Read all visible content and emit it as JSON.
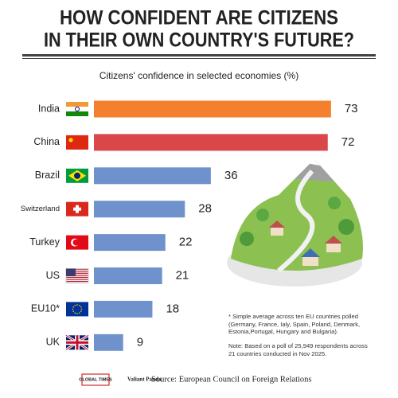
{
  "chart_data": {
    "type": "bar",
    "title": [
      "HOW CONFIDENT ARE CITIZENS",
      "IN THEIR OWN COUNTRY'S FUTURE?"
    ],
    "subtitle": "Citizens' confidence in selected economies (%)",
    "categories": [
      "India",
      "China",
      "Brazil",
      "Switzerland",
      "Turkey",
      "US",
      "EU10*",
      "UK"
    ],
    "values": [
      73,
      72,
      36,
      28,
      22,
      21,
      18,
      9
    ],
    "colors": [
      "#f47f2c",
      "#d9474b",
      "#7092cc",
      "#7092cc",
      "#7092cc",
      "#7092cc",
      "#7092cc",
      "#7092cc"
    ],
    "notes": [
      "* Simple average across ten EU countries polled (Germany, France, Ialy, Spain, Poland, Denmark, Estonia,Portugal, Hungary and Bulgaria).",
      "Note: Based on a poll of 25,949 respondents across 21 countries conducted in Nov 2025."
    ],
    "logos": [
      "GLOBAL TIMES",
      "Valiant Panda"
    ],
    "source": "Source: European Council on Foreign Relations"
  }
}
